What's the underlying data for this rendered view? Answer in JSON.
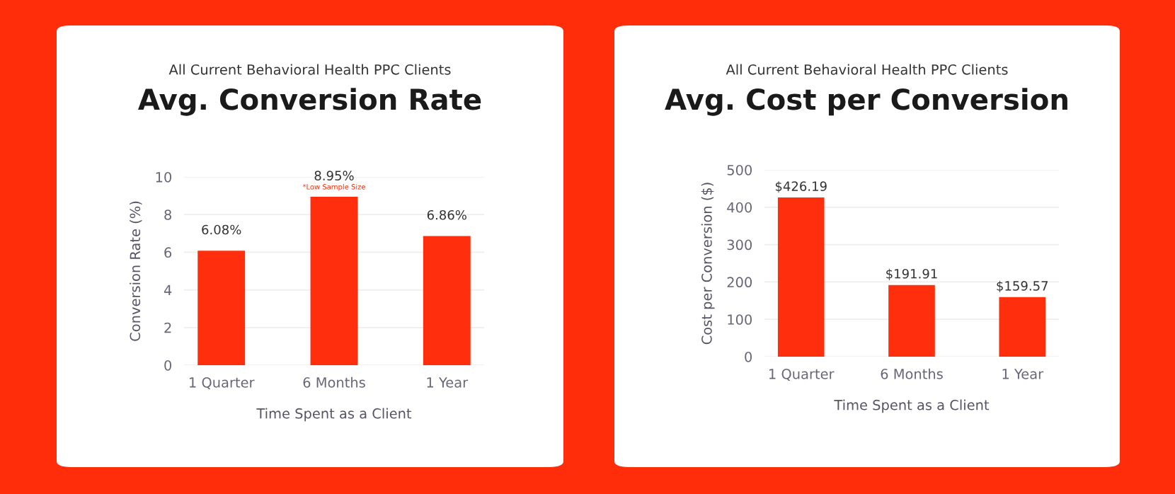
{
  "chart_data": [
    {
      "type": "bar",
      "subtitle": "All Current Behavioral Health PPC Clients",
      "title": "Avg. Conversion Rate",
      "xlabel": "Time Spent as a Client",
      "ylabel": "Conversion Rate (%)",
      "categories": [
        "1 Quarter",
        "6 Months",
        "1 Year"
      ],
      "values": [
        6.08,
        8.95,
        6.86
      ],
      "value_labels": [
        "6.08%",
        "8.95%",
        "6.86%"
      ],
      "color": "#ff2e0c",
      "ylim": [
        0,
        10
      ],
      "yticks": [
        0,
        2,
        4,
        6,
        8,
        10
      ],
      "grid": "y",
      "annotations": [
        {
          "text": "*Low Sample Size",
          "x": "6 Months",
          "y": 8.95
        }
      ]
    },
    {
      "type": "bar",
      "subtitle": "All Current Behavioral Health PPC Clients",
      "title": "Avg. Cost per Conversion",
      "xlabel": "Time Spent as a Client",
      "ylabel": "Cost per Conversion ($)",
      "categories": [
        "1 Quarter",
        "6 Months",
        "1 Year"
      ],
      "values": [
        426.19,
        191.91,
        159.57
      ],
      "value_labels": [
        "$426.19",
        "$191.91",
        "$159.57"
      ],
      "color": "#ff2e0c",
      "ylim": [
        0,
        500
      ],
      "yticks": [
        0,
        100,
        200,
        300,
        400,
        500
      ],
      "grid": "y"
    }
  ]
}
